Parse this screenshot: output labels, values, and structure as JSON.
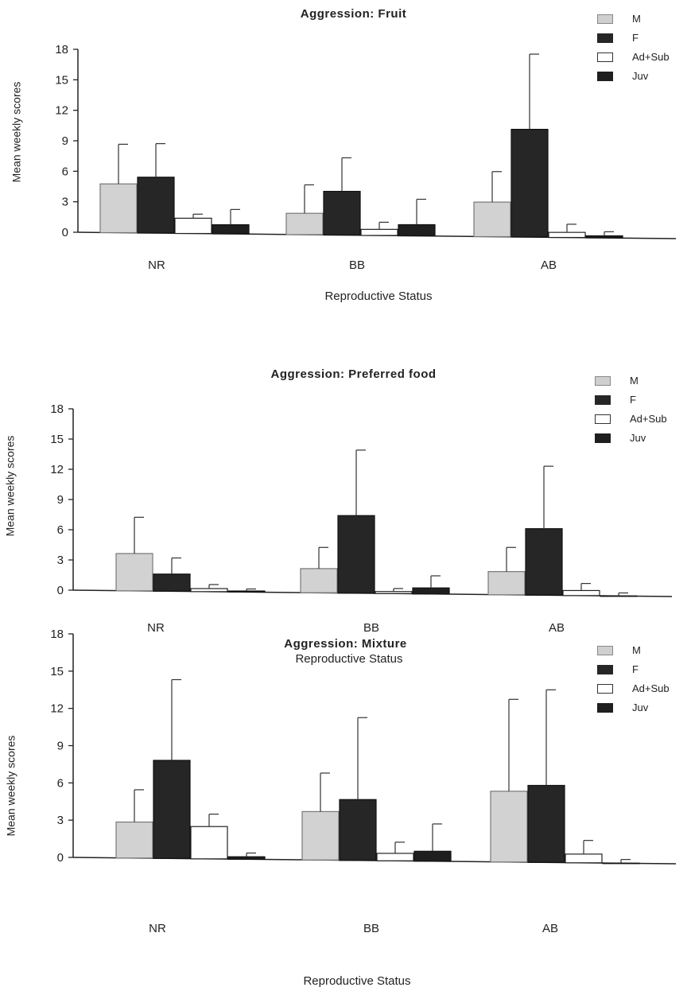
{
  "chart_data": [
    {
      "type": "bar",
      "title": "Aggression:  Fruit",
      "xlabel": "Reproductive Status",
      "ylabel": "Mean weekly scores",
      "categories": [
        "NR",
        "BB",
        "AB"
      ],
      "ylim": [
        0,
        18
      ],
      "yticks": [
        "0",
        "3",
        "6",
        "9",
        "12",
        "15",
        "18"
      ],
      "series": [
        {
          "name": "M",
          "values": [
            4.8,
            2.1,
            3.4
          ],
          "errors": [
            3.9,
            2.8,
            3.0
          ]
        },
        {
          "name": "F",
          "values": [
            5.5,
            4.3,
            10.6
          ],
          "errors": [
            3.3,
            3.3,
            7.4
          ]
        },
        {
          "name": "Ad+Sub",
          "values": [
            1.5,
            0.6,
            0.5
          ],
          "errors": [
            0.4,
            0.7,
            0.8
          ]
        },
        {
          "name": "Juv",
          "values": [
            0.9,
            1.1,
            0.2
          ],
          "errors": [
            1.5,
            2.5,
            0.4
          ]
        }
      ],
      "legend_position": "top-right"
    },
    {
      "type": "bar",
      "title": "Aggression:  Preferred food",
      "xlabel": "Reproductive Status",
      "ylabel": "Mean weekly scores",
      "categories": [
        "NR",
        "BB",
        "AB"
      ],
      "ylim": [
        0,
        18
      ],
      "yticks": [
        "0",
        "3",
        "6",
        "9",
        "12",
        "15",
        "18"
      ],
      "series": [
        {
          "name": "M",
          "values": [
            3.7,
            2.4,
            2.3
          ],
          "errors": [
            3.6,
            2.1,
            2.4
          ]
        },
        {
          "name": "F",
          "values": [
            1.7,
            7.7,
            6.6
          ],
          "errors": [
            1.6,
            6.5,
            6.2
          ]
        },
        {
          "name": "Ad+Sub",
          "values": [
            0.3,
            0.2,
            0.5
          ],
          "errors": [
            0.4,
            0.3,
            0.7
          ]
        },
        {
          "name": "Juv",
          "values": [
            0.1,
            0.6,
            0.0
          ],
          "errors": [
            0.2,
            1.2,
            0.3
          ]
        }
      ],
      "legend_position": "top-right"
    },
    {
      "type": "bar",
      "title": "Aggression:  Mixture",
      "xlabel": "Reproductive Status",
      "ylabel": "Mean weekly scores",
      "categories": [
        "NR",
        "BB",
        "AB"
      ],
      "ylim": [
        0,
        18
      ],
      "yticks": [
        "0",
        "3",
        "6",
        "9",
        "12",
        "15",
        "18"
      ],
      "series": [
        {
          "name": "M",
          "values": [
            2.9,
            3.9,
            5.7
          ],
          "errors": [
            2.6,
            3.1,
            7.4
          ]
        },
        {
          "name": "F",
          "values": [
            7.9,
            4.9,
            6.2
          ],
          "errors": [
            6.5,
            6.6,
            7.7
          ]
        },
        {
          "name": "Ad+Sub",
          "values": [
            2.6,
            0.6,
            0.7
          ],
          "errors": [
            1.0,
            0.9,
            1.1
          ]
        },
        {
          "name": "Juv",
          "values": [
            0.2,
            0.8,
            0.0
          ],
          "errors": [
            0.3,
            2.2,
            0.3
          ]
        }
      ],
      "legend_position": "top-right"
    }
  ],
  "colors": {
    "M": "#d4d4d4",
    "F": "#262626",
    "Ad+Sub": "#ffffff",
    "Juv": "#1f1f1f",
    "axis": "#222222"
  }
}
